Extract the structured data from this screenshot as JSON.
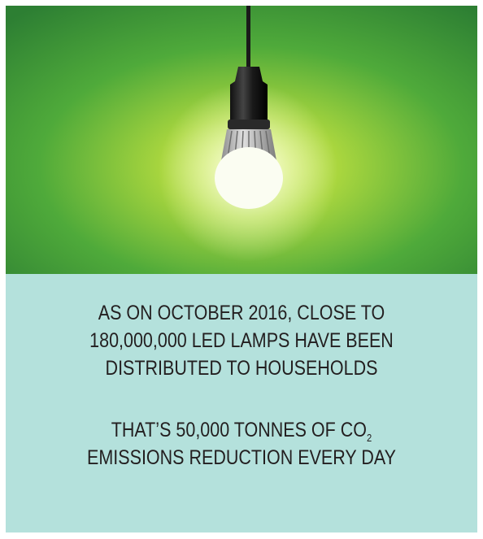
{
  "text": {
    "paragraphs": [
      {
        "lines": [
          "AS ON OCTOBER 2016, CLOSE TO",
          "180,000,000 LED LAMPS HAVE BEEN",
          "DISTRIBUTED TO HOUSEHOLDS"
        ]
      },
      {
        "lines": [
          "THAT’S 50,000 TONNES OF CO",
          "EMISSIONS REDUCTION EVERY DAY"
        ],
        "subscript": "2"
      }
    ]
  }
}
